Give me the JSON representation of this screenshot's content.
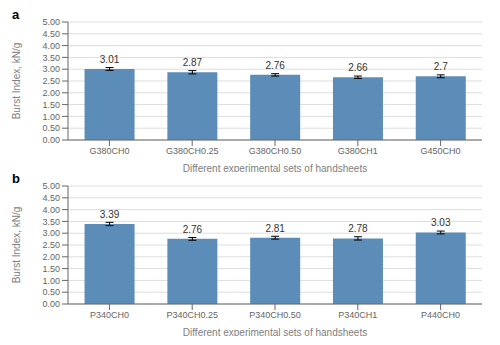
{
  "chart_data": [
    {
      "type": "bar",
      "title": "a",
      "categories": [
        "G380CH0",
        "G380CH0.25",
        "G380CH0.50",
        "G380CH1",
        "G450CH0"
      ],
      "values": [
        3.01,
        2.87,
        2.76,
        2.66,
        2.7
      ],
      "errors": [
        0.06,
        0.07,
        0.05,
        0.05,
        0.06
      ],
      "ylabel": "Burst Index, kN/g",
      "xlabel": "Different experimental sets of handsheets",
      "ylim": [
        0,
        5
      ],
      "yticks": [
        {
          "value": 0,
          "label": "0.00"
        },
        {
          "value": 0.5,
          "label": "0.50"
        },
        {
          "value": 1,
          "label": "1.00"
        },
        {
          "value": 1.5,
          "label": "1.50"
        },
        {
          "value": 2,
          "label": "2.00"
        },
        {
          "value": 2.5,
          "label": "2.50"
        },
        {
          "value": 3,
          "label": "3.00"
        },
        {
          "value": 3.5,
          "label": "3.50"
        },
        {
          "value": 4,
          "label": "4.00"
        },
        {
          "value": 4.5,
          "label": "4.50"
        },
        {
          "value": 5,
          "label": "5.00"
        }
      ],
      "color": "#5B8DB8",
      "grid": true,
      "data_labels": true
    },
    {
      "type": "bar",
      "title": "b",
      "categories": [
        "P340CH0",
        "P340CH0.25",
        "P340CH0.50",
        "P340CH1",
        "P440CH0"
      ],
      "values": [
        3.39,
        2.76,
        2.81,
        2.78,
        3.03
      ],
      "errors": [
        0.07,
        0.06,
        0.06,
        0.07,
        0.06
      ],
      "ylabel": "Burst Index, kN/g",
      "xlabel": "Different experimental sets of handsheets",
      "ylim": [
        0,
        5
      ],
      "yticks": [
        {
          "value": 0,
          "label": "0.00"
        },
        {
          "value": 0.5,
          "label": "0.50"
        },
        {
          "value": 1,
          "label": "1.00"
        },
        {
          "value": 1.5,
          "label": "1.50"
        },
        {
          "value": 2,
          "label": "2.00"
        },
        {
          "value": 2.5,
          "label": "2.50"
        },
        {
          "value": 3,
          "label": "3.00"
        },
        {
          "value": 3.5,
          "label": "3.50"
        },
        {
          "value": 4,
          "label": "4.00"
        },
        {
          "value": 4.5,
          "label": "4.50"
        },
        {
          "value": 5,
          "label": "5.00"
        }
      ],
      "color": "#5B8DB8",
      "grid": true,
      "data_labels": true
    }
  ]
}
